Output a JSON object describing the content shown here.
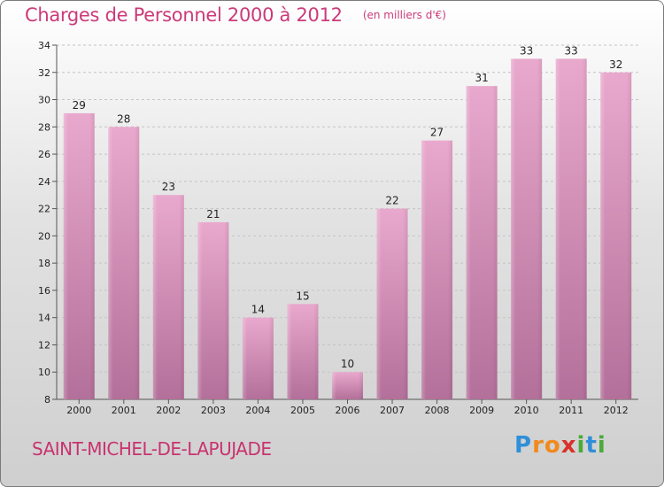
{
  "title": "Charges de Personnel 2000 à 2012",
  "unit": "(en milliers d'€)",
  "town": "SAINT-MICHEL-DE-LAPUJADE",
  "logo": {
    "letters": [
      "P",
      "r",
      "o",
      "x",
      "i",
      "t",
      "i"
    ],
    "colors": [
      "#2f8fd8",
      "#f18a1d",
      "#f18a1d",
      "#d8322a",
      "#4aaa3a",
      "#2f8fd8",
      "#4aaa3a"
    ]
  },
  "colors": {
    "bar_top": "#e9a8cd",
    "bar_bottom": "#b3709a",
    "accent": "#cc3a7a"
  },
  "chart_data": {
    "type": "bar",
    "categories": [
      "2000",
      "2001",
      "2002",
      "2003",
      "2004",
      "2005",
      "2006",
      "2007",
      "2008",
      "2009",
      "2010",
      "2011",
      "2012"
    ],
    "values": [
      29,
      28,
      23,
      21,
      14,
      15,
      10,
      22,
      27,
      31,
      33,
      33,
      32
    ],
    "ylim": [
      8,
      34
    ],
    "yticks": [
      8,
      10,
      12,
      14,
      16,
      18,
      20,
      22,
      24,
      26,
      28,
      30,
      32,
      34
    ],
    "grid": true
  }
}
